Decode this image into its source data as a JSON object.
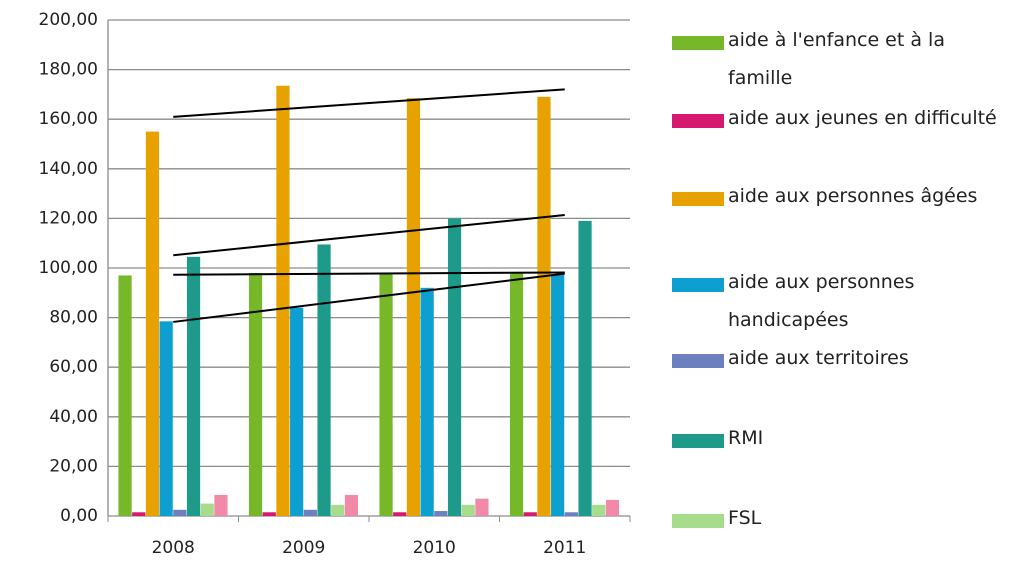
{
  "chart_data": {
    "type": "bar",
    "categories": [
      "2008",
      "2009",
      "2010",
      "2011"
    ],
    "series": [
      {
        "name": "aide à l'enfance et à la famille",
        "color": "#76b82a",
        "values": [
          97,
          98,
          98,
          98
        ],
        "trendline": true
      },
      {
        "name": "aide aux jeunes en difficulté",
        "color": "#d6186e",
        "values": [
          1.5,
          1.5,
          1.5,
          1.5
        ]
      },
      {
        "name": "aide aux personnes âgées",
        "color": "#e8a200",
        "values": [
          155,
          173.5,
          168.5,
          169
        ],
        "trendline": true
      },
      {
        "name": "aide aux personnes handicapées",
        "color": "#0c9fcf",
        "values": [
          78.5,
          84,
          92,
          97.5
        ],
        "trendline": true
      },
      {
        "name": "aide aux territoires",
        "color": "#6c7fbf",
        "values": [
          2.5,
          2.5,
          2,
          1.5
        ]
      },
      {
        "name": "RMI",
        "color": "#1d9a8a",
        "values": [
          104.5,
          109.5,
          120,
          119
        ],
        "trendline": true
      },
      {
        "name": "FSL",
        "color": "#a6dc8c",
        "values": [
          5,
          4.5,
          4.5,
          4.5
        ]
      },
      {
        "color": "#f08aa8",
        "values": [
          8.5,
          8.5,
          7,
          6.5
        ]
      }
    ],
    "ylim": [
      0,
      200
    ],
    "yticks": [
      {
        "value": 0,
        "label": "0,00"
      },
      {
        "value": 20,
        "label": "20,00"
      },
      {
        "value": 40,
        "label": "40,00"
      },
      {
        "value": 60,
        "label": "60,00"
      },
      {
        "value": 80,
        "label": "80,00"
      },
      {
        "value": 100,
        "label": "100,00"
      },
      {
        "value": 120,
        "label": "120,00"
      },
      {
        "value": 140,
        "label": "140,00"
      },
      {
        "value": 160,
        "label": "160,00"
      },
      {
        "value": 180,
        "label": "180,00"
      },
      {
        "value": 200,
        "label": "200,00"
      }
    ],
    "grid": true,
    "legend": "right"
  }
}
